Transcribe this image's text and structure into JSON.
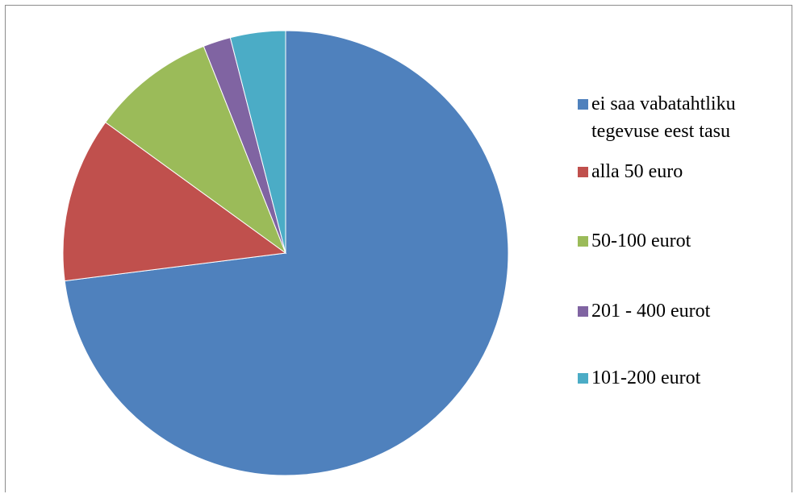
{
  "chart_data": {
    "type": "pie",
    "categories": [
      "ei saa vabatahtliku tegevuse eest tasu",
      "alla 50 euro",
      "50-100 eurot",
      "201 - 400 eurot",
      "101-200 eurot"
    ],
    "values": [
      73,
      12,
      9,
      2,
      4
    ],
    "colors": [
      "#4f81bd",
      "#c0504d",
      "#9bbb59",
      "#8064a2",
      "#4bacc6"
    ],
    "legend": "right"
  }
}
